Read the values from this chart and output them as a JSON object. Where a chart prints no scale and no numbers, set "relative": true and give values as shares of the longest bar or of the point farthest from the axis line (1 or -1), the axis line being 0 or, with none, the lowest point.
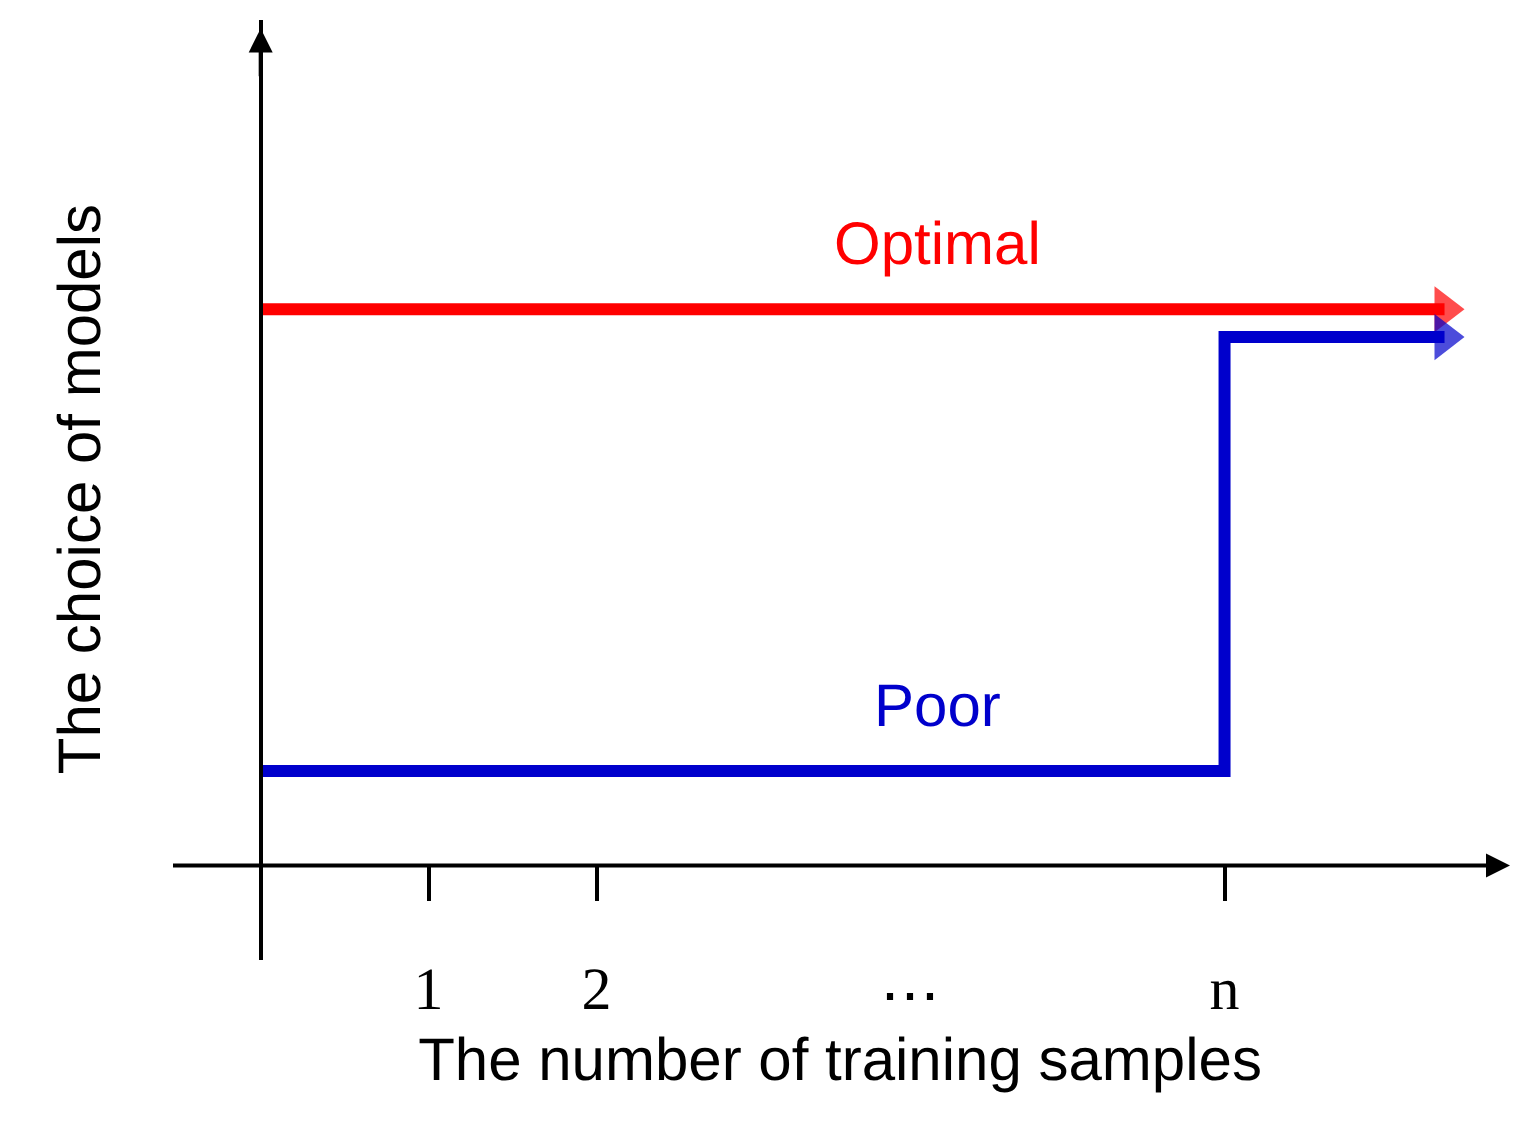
{
  "chart_data": {
    "type": "line",
    "relative": true,
    "ylabel": "The choice of models",
    "xlabel": "The number of training samples",
    "xlim": [
      -0.54,
      7.44
    ],
    "xticks": [
      1,
      2,
      {
        "value": 5.74,
        "label": "n"
      }
    ],
    "annotations": [
      "⋯"
    ],
    "legend": false,
    "series": [
      {
        "name": "Optimal",
        "color": "#ff0000",
        "x": [
          0,
          7.05
        ],
        "values": [
          1,
          1
        ]
      },
      {
        "name": "Poor",
        "type": "step",
        "color": "#0000cc",
        "x": [
          0,
          5.74,
          7.05
        ],
        "values": [
          0.17,
          0.95,
          0.95
        ]
      }
    ]
  }
}
